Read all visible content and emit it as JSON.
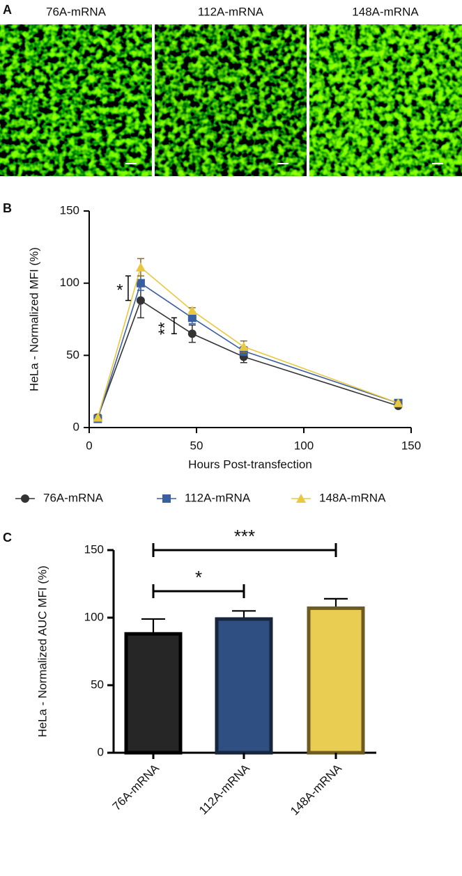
{
  "images": {
    "panel": "A",
    "titles": [
      "76A-mRNA",
      "112A-mRNA",
      "148A-mRNA"
    ]
  },
  "chart_data": [
    {
      "type": "line",
      "panel": "B",
      "y_label": "HeLa - Normalized MFI (%)",
      "x_label": "Hours Post-transfection",
      "x": [
        4,
        24,
        48,
        72,
        144
      ],
      "xlim": [
        0,
        150
      ],
      "xticks": [
        0,
        50,
        100,
        150
      ],
      "ylim": [
        0,
        150
      ],
      "yticks": [
        0,
        50,
        100,
        150
      ],
      "series": [
        {
          "name": "76A-mRNA",
          "color": "#333333",
          "marker": "circle",
          "values": [
            7,
            88,
            65,
            49,
            15
          ],
          "errors": [
            2,
            12,
            6,
            4,
            1
          ]
        },
        {
          "name": "112A-mRNA",
          "color": "#3a5fa0",
          "marker": "square",
          "values": [
            6,
            100,
            76,
            53,
            17
          ],
          "errors": [
            1,
            5,
            4,
            3,
            1
          ]
        },
        {
          "name": "148A-mRNA",
          "color": "#e8c840",
          "marker": "triangle",
          "values": [
            7,
            111,
            81,
            56,
            17
          ],
          "errors": [
            1,
            6,
            2,
            4,
            1
          ]
        }
      ],
      "annotations": [
        {
          "label": "*",
          "x": 24
        },
        {
          "label": "**",
          "x": 48
        }
      ]
    },
    {
      "type": "bar",
      "panel": "C",
      "y_label": "HeLa - Normalized AUC MFI  (%)",
      "categories": [
        "76A-mRNA",
        "112A-mRNA",
        "148A-mRNA"
      ],
      "values": [
        88,
        99,
        107
      ],
      "errors": [
        11,
        6,
        7
      ],
      "colors": [
        "#262626",
        "#2f4f82",
        "#e9cc52"
      ],
      "edge_colors": [
        "#000000",
        "#17263c",
        "#6e5b22"
      ],
      "ylim": [
        0,
        150
      ],
      "yticks": [
        0,
        50,
        100,
        150
      ],
      "comparisons": [
        {
          "label": "*",
          "between": [
            "76A-mRNA",
            "112A-mRNA"
          ]
        },
        {
          "label": "***",
          "between": [
            "76A-mRNA",
            "148A-mRNA"
          ]
        }
      ]
    }
  ]
}
